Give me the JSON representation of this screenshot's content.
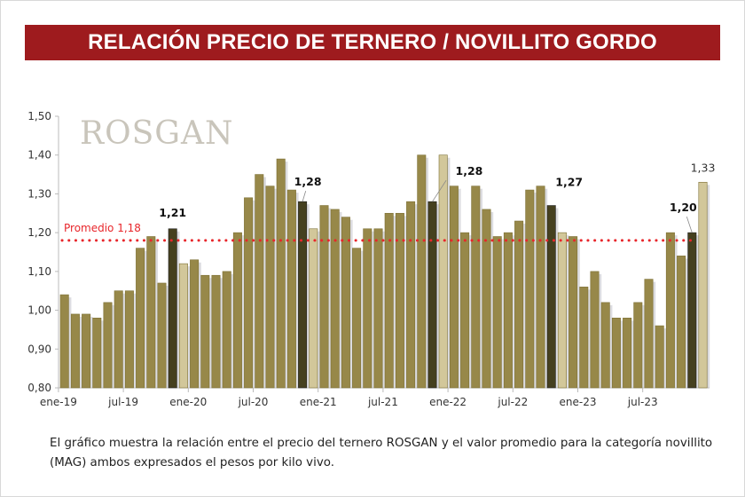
{
  "title": "RELACIÓN PRECIO DE TERNERO / NOVILLITO GORDO",
  "logo_text": "ROSGAN",
  "footer": "El gráfico muestra la relación entre el precio del ternero ROSGAN y el valor promedio para la categoría novillito (MAG) ambos expresados el pesos por kilo vivo.",
  "colors": {
    "banner": "#9e1b1e",
    "bar": "#978849",
    "dark": "#45401f",
    "light": "#d2c79a",
    "average": "#e8262b"
  },
  "chart_data": {
    "type": "bar",
    "ylim": [
      0.8,
      1.5
    ],
    "yticks": [
      "0,80",
      "0,90",
      "1,00",
      "1,10",
      "1,20",
      "1,30",
      "1,40",
      "1,50"
    ],
    "xticks": [
      "ene-19",
      "jul-19",
      "ene-20",
      "jul-20",
      "ene-21",
      "jul-21",
      "ene-22",
      "jul-22",
      "ene-23",
      "jul-23"
    ],
    "average": {
      "label": "Promedio 1,18",
      "value": 1.18
    },
    "values": [
      1.04,
      0.99,
      0.99,
      0.98,
      1.02,
      1.05,
      1.05,
      1.16,
      1.19,
      1.07,
      1.21,
      1.12,
      1.13,
      1.09,
      1.09,
      1.1,
      1.2,
      1.29,
      1.35,
      1.32,
      1.39,
      1.31,
      1.28,
      1.21,
      1.27,
      1.26,
      1.24,
      1.16,
      1.21,
      1.21,
      1.25,
      1.25,
      1.28,
      1.4,
      1.28,
      1.4,
      1.32,
      1.2,
      1.32,
      1.26,
      1.19,
      1.2,
      1.23,
      1.31,
      1.32,
      1.27,
      1.2,
      1.19,
      1.06,
      1.1,
      1.02,
      0.98,
      0.98,
      1.02,
      1.08,
      0.96,
      1.2,
      1.14,
      1.2,
      1.33
    ],
    "dark_indices": [
      10,
      22,
      34,
      45,
      58
    ],
    "light_indices": [
      11,
      23,
      35,
      46,
      59
    ],
    "annotations": [
      {
        "index": 10,
        "text": "1,21"
      },
      {
        "index": 22,
        "text": "1,28"
      },
      {
        "index": 34,
        "text": "1,28"
      },
      {
        "index": 45,
        "text": "1,27"
      },
      {
        "index": 58,
        "text": "1,20"
      },
      {
        "index": 59,
        "text": "1,33"
      }
    ]
  }
}
